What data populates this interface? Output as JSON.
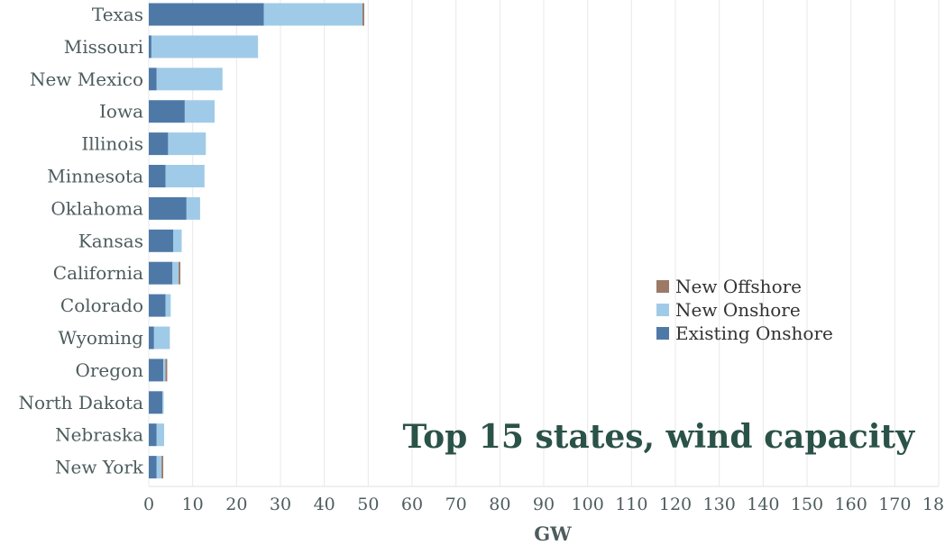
{
  "chart_data": {
    "type": "bar",
    "orientation": "horizontal",
    "stacked": true,
    "title": "Top 15 states, wind capacity",
    "xlabel": "GW",
    "ylabel": "",
    "xlim": [
      0,
      180
    ],
    "xticks": [
      0,
      10,
      20,
      30,
      40,
      50,
      60,
      70,
      80,
      90,
      100,
      110,
      120,
      130,
      140,
      150,
      160,
      170,
      180
    ],
    "grid": "vertical",
    "legend_position": "right",
    "categories": [
      "Texas",
      "Missouri",
      "New Mexico",
      "Iowa",
      "Illinois",
      "Minnesota",
      "Oklahoma",
      "Kansas",
      "California",
      "Colorado",
      "Wyoming",
      "Oregon",
      "North Dakota",
      "Nebraska",
      "New York"
    ],
    "series": [
      {
        "name": "Existing Onshore",
        "color": "#4e79a7",
        "values": [
          26.2,
          0.6,
          1.8,
          8.2,
          4.4,
          3.8,
          8.6,
          5.6,
          5.4,
          3.8,
          1.2,
          3.3,
          3.1,
          1.8,
          1.8
        ]
      },
      {
        "name": "New Onshore",
        "color": "#a0cbe8",
        "values": [
          22.5,
          24.3,
          15.0,
          6.8,
          8.6,
          8.9,
          3.1,
          1.9,
          1.4,
          1.2,
          3.6,
          0.5,
          0.3,
          1.7,
          1.1
        ]
      },
      {
        "name": "New Offshore",
        "color": "#9c7a66",
        "values": [
          0.4,
          0,
          0,
          0,
          0,
          0,
          0,
          0,
          0.4,
          0,
          0,
          0.4,
          0,
          0,
          0.4
        ]
      }
    ],
    "legend": [
      "New Offshore",
      "New Onshore",
      "Existing Onshore"
    ]
  }
}
